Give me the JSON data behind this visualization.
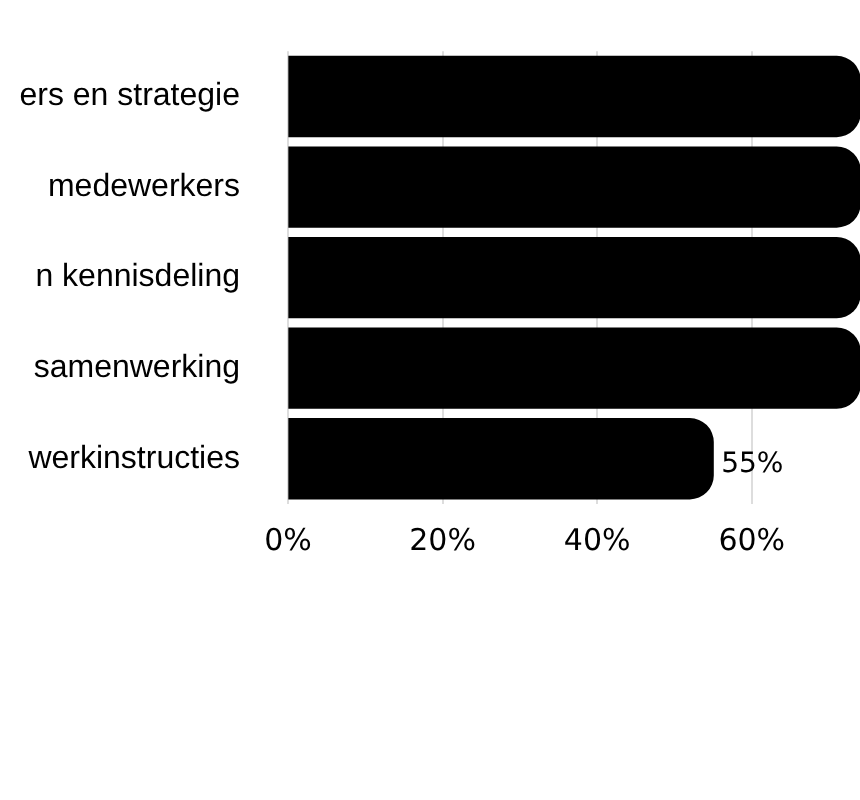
{
  "chart_data": {
    "type": "bar",
    "orientation": "horizontal",
    "categories": [
      "ers en strategie",
      "medewerkers",
      "n kennisdeling",
      "samenwerking",
      "werkinstructies"
    ],
    "values": [
      74,
      74,
      74,
      74,
      55
    ],
    "value_labels": [
      null,
      null,
      null,
      null,
      "55%"
    ],
    "color": "#000000",
    "xlim": [
      0,
      74
    ],
    "xticks": [
      {
        "value": 0,
        "label": "0%"
      },
      {
        "value": 20,
        "label": "20%"
      },
      {
        "value": 40,
        "label": "40%"
      },
      {
        "value": 60,
        "label": "60%"
      }
    ],
    "grid": "x",
    "legend": false
  }
}
